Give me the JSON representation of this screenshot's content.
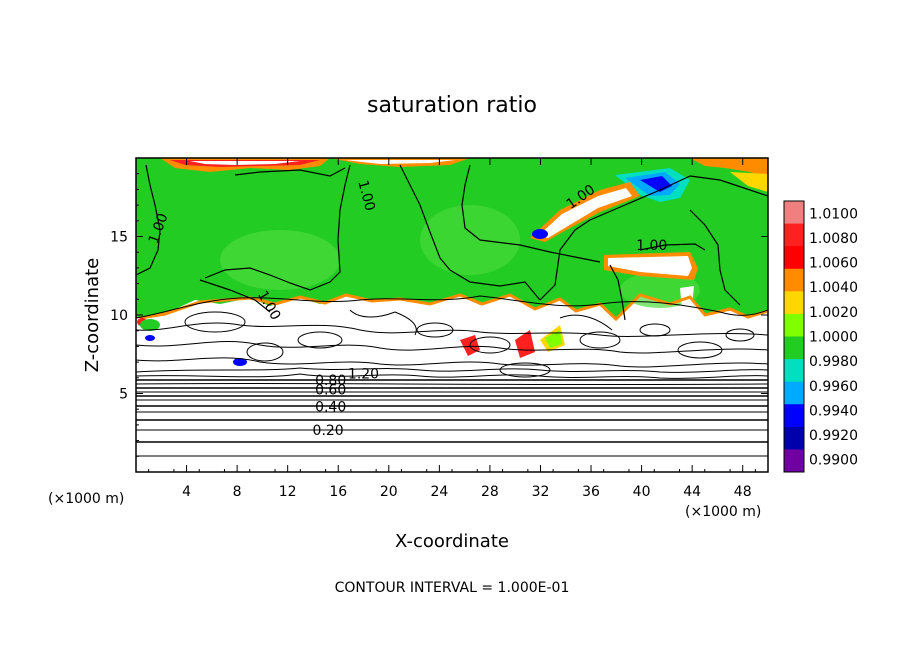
{
  "chart_data": {
    "type": "heatmap",
    "title": "saturation ratio",
    "xlabel": "X-coordinate",
    "ylabel": "Z-coordinate",
    "x_unit": "(×1000 m)",
    "y_unit": "(×1000 m)",
    "xlim": [
      0,
      50
    ],
    "ylim": [
      0,
      20
    ],
    "x_ticks": [
      4,
      8,
      12,
      16,
      20,
      24,
      28,
      32,
      36,
      40,
      44,
      48
    ],
    "y_ticks": [
      5,
      10,
      15
    ],
    "footer": "CONTOUR INTERVAL = 1.000E-01",
    "colorbar": {
      "levels": [
        "1.0100",
        "1.0080",
        "1.0060",
        "1.0040",
        "1.0020",
        "1.0000",
        "0.9980",
        "0.9960",
        "0.9940",
        "0.9920",
        "0.9900"
      ],
      "colors": [
        "#f08080",
        "#ff2020",
        "#ff0000",
        "#ff8c00",
        "#ffd700",
        "#7fff00",
        "#22cc22",
        "#00e0c0",
        "#00aaff",
        "#0000ff",
        "#0000aa",
        "#7000a0"
      ]
    },
    "contour_labels": [
      {
        "text": "1.00",
        "x": 1.8,
        "z": 15.5
      },
      {
        "text": "1.00",
        "x": 18.2,
        "z": 17.6
      },
      {
        "text": "1.00",
        "x": 10.5,
        "z": 10.6
      },
      {
        "text": "1.00",
        "x": 35.2,
        "z": 17.5
      },
      {
        "text": "1.00",
        "x": 40.8,
        "z": 14.4
      },
      {
        "text": "1.20",
        "x": 18.0,
        "z": 6.2
      },
      {
        "text": "0.80",
        "x": 15.4,
        "z": 5.8
      },
      {
        "text": "0.60",
        "x": 15.4,
        "z": 5.2
      },
      {
        "text": "0.40",
        "x": 15.4,
        "z": 4.1
      },
      {
        "text": "0.20",
        "x": 15.2,
        "z": 2.6
      }
    ]
  }
}
